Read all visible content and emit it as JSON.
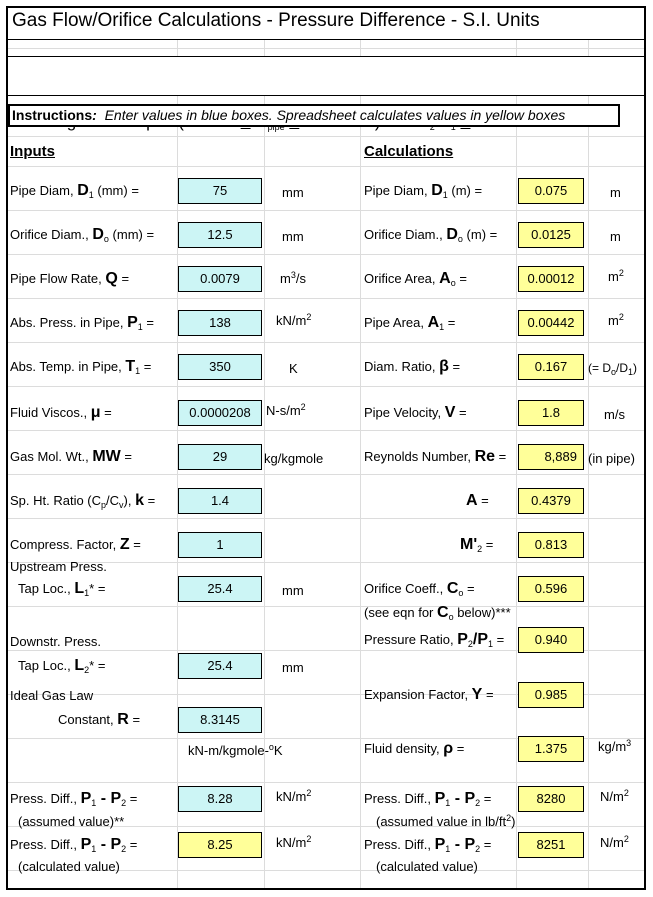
{
  "title": "Gas Flow/Orifice Calculations - Pressure Difference - S.I. Units",
  "subtitle": {
    "pre": "For Large Bore Pipes (50 mm ",
    "le": "<",
    "mid": " D",
    "pipe": "pipe",
    "ge": ">",
    "post": " 1000 mm) and P",
    "s2": "2",
    "slash": "/P",
    "s1": "1",
    "ge2": ">",
    "val": " 0.75"
  },
  "instructions": {
    "bold": "Instructions",
    "colon": ":",
    "text": "Enter values in blue boxes.  Spreadsheet calculates values in yellow boxes"
  },
  "inputs_header": "Inputs",
  "calc_header": "Calculations",
  "inputs": {
    "pipe_diam": {
      "label": "Pipe Diam, ",
      "sym": "D",
      "sub": "1",
      "tail": " (mm)  =",
      "value": "75",
      "unit": "mm"
    },
    "orifice_diam": {
      "label": "Orifice Diam., ",
      "sym": "D",
      "sub": "o",
      "tail": " (mm)  =",
      "value": "12.5",
      "unit": "mm"
    },
    "flow_rate": {
      "label": "Pipe Flow Rate, ",
      "sym": "Q",
      "tail": "  =",
      "value": "0.0079",
      "unit": "m",
      "unit_sup": "3",
      "unit_tail": "/s"
    },
    "abs_press": {
      "label": "Abs. Press. in Pipe, ",
      "sym": "P",
      "sub": "1",
      "tail": "  =",
      "value": "138",
      "unit": "kN/m",
      "unit_sup": "2"
    },
    "abs_temp": {
      "label": "Abs. Temp. in Pipe, ",
      "sym": "T",
      "sub": "1",
      "tail": "  =",
      "value": "350",
      "unit": "K"
    },
    "viscos": {
      "label": "Fluid Viscos., ",
      "sym": "μ",
      "tail": "  =",
      "value": "0.0000208",
      "unit": "N-s/m",
      "unit_sup": "2"
    },
    "mol_wt": {
      "label": "Gas Mol. Wt., ",
      "sym": "MW",
      "tail": "  =",
      "value": "29",
      "unit": "kg/kgmole"
    },
    "sp_ht": {
      "label": "Sp. Ht. Ratio (C",
      "sub_p": "p",
      "mid": "/C",
      "sub_v": "v",
      "tail": "),  ",
      "sym": "k",
      "eq": " =",
      "value": "1.4"
    },
    "compress": {
      "label": "Compress. Factor, ",
      "sym": "Z",
      "tail": "  =",
      "value": "1"
    },
    "upstream": {
      "line1": "Upstream Press.",
      "label": "Tap Loc., ",
      "sym": "L",
      "sub": "1",
      "tail": "*  =",
      "value": "25.4",
      "unit": "mm"
    },
    "downstream": {
      "line1": "Downstr. Press.",
      "label": "Tap Loc., ",
      "sym": "L",
      "sub": "2",
      "tail": "*  =",
      "value": "25.4",
      "unit": "mm"
    },
    "gas_const": {
      "line1": "Ideal Gas Law",
      "label": "Constant, ",
      "sym": "R",
      "tail": "  =",
      "value": "8.3145",
      "unit": "kN-m/kgmole-",
      "unit_sup": "o",
      "unit_tail": "K"
    },
    "press_diff_assumed": {
      "label": "Press. Diff., ",
      "sym": "P",
      "sub": "1",
      "dash": " - P",
      "sub2": "2",
      "tail": "  =",
      "note": "(assumed value)**",
      "value": "8.28",
      "unit": "kN/m",
      "unit_sup": "2"
    },
    "press_diff_calc": {
      "label": "Press. Diff., ",
      "sym": "P",
      "sub": "1",
      "dash": " - P",
      "sub2": "2",
      "tail": "  =",
      "note": "(calculated value)",
      "value": "8.25",
      "unit": "kN/m",
      "unit_sup": "2"
    }
  },
  "calcs": {
    "pipe_diam": {
      "label": "Pipe Diam, ",
      "sym": "D",
      "sub": "1",
      "tail": " (m)  =",
      "value": "0.075",
      "unit": "m"
    },
    "orifice_diam": {
      "label": "Orifice Diam., ",
      "sym": "D",
      "sub": "o",
      "tail": " (m)  =",
      "value": "0.0125",
      "unit": "m"
    },
    "orifice_area": {
      "label": "Orifice Area, ",
      "sym": "A",
      "sub": "o",
      "tail": "  =",
      "value": "0.00012",
      "unit": "m",
      "unit_sup": "2"
    },
    "pipe_area": {
      "label": "Pipe Area, ",
      "sym": "A",
      "sub": "1",
      "tail": " =",
      "value": "0.00442",
      "unit": "m",
      "unit_sup": "2"
    },
    "diam_ratio": {
      "label": "Diam. Ratio, ",
      "sym": "β",
      "tail": "  =",
      "value": "0.167",
      "unit": "(= D",
      "unit_sub": "o",
      "unit_tail": "/D",
      "unit_sub2": "1",
      "unit_end": ")"
    },
    "velocity": {
      "label": "Pipe Velocity, ",
      "sym": "V",
      "tail": "  =",
      "value": "1.8",
      "unit": "m/s"
    },
    "reynolds": {
      "label": "Reynolds Number, ",
      "sym": "Re",
      "tail": "  =",
      "value": "8,889",
      "unit": "(in pipe)"
    },
    "a": {
      "sym": "A",
      "tail": " =",
      "value": "0.4379"
    },
    "m2": {
      "sym": "M'",
      "sub": "2",
      "tail": " =",
      "value": "0.813"
    },
    "orifice_coeff": {
      "label": "Orifice Coeff., ",
      "sym": "C",
      "sub": "o",
      "tail": " =",
      "note_pre": "(see eqn for ",
      "note_sym": "C",
      "note_sub": "o",
      "note_post": " below)***",
      "value": "0.596"
    },
    "press_ratio": {
      "label": "Pressure Ratio, ",
      "sym": "P",
      "sub": "2",
      "mid": "/P",
      "sub2": "1",
      "tail": " =",
      "value": "0.940"
    },
    "expansion": {
      "label": "Expansion Factor, ",
      "sym": "Y",
      "tail": " =",
      "value": "0.985"
    },
    "density": {
      "label": "Fluid density, ",
      "sym": "ρ",
      "tail": "  =",
      "value": "1.375",
      "unit": "kg/m",
      "unit_sup": "3"
    },
    "press_diff_assumed": {
      "label": "Press. Diff., ",
      "sym": "P",
      "sub": "1",
      "dash": " - P",
      "sub2": "2",
      "tail": "  =",
      "note": "(assumed value in lb/ft",
      "note_sup": "2",
      "note_end": ")",
      "value": "8280",
      "unit": "N/m",
      "unit_sup": "2"
    },
    "press_diff_calc": {
      "label": "Press. Diff., ",
      "sym": "P",
      "sub": "1",
      "dash": " - P",
      "sub2": "2",
      "tail": "  =",
      "note": "(calculated value)",
      "value": "8251",
      "unit": "N/m",
      "unit_sup": "2"
    }
  },
  "colors": {
    "input_box": "#ccf5f5",
    "output_box": "#ffff99",
    "grid": "#dcdcdc"
  }
}
